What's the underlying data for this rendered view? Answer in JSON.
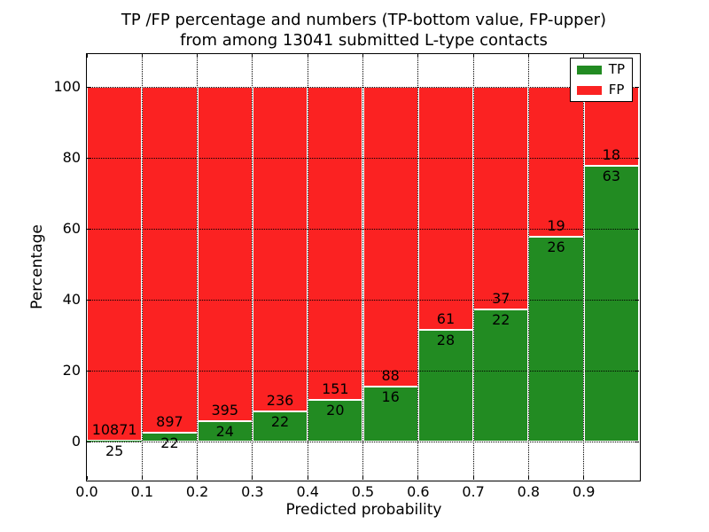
{
  "figure": {
    "title_line1": "TP /FP percentage and numbers (TP-bottom value, FP-upper)",
    "title_line2": "from among 13041 submitted L-type contacts"
  },
  "axes": {
    "xlabel": "Predicted probability",
    "ylabel": "Percentage",
    "x_tick_labels": [
      "0.0",
      "0.1",
      "0.2",
      "0.3",
      "0.4",
      "0.5",
      "0.6",
      "0.7",
      "0.8",
      "0.9"
    ],
    "y_tick_values": [
      0,
      20,
      40,
      60,
      80,
      100
    ],
    "grid": "dotted",
    "tick_direction": "in"
  },
  "legend": {
    "position": "upper-right",
    "items": [
      "TP",
      "FP"
    ]
  },
  "chart_data": {
    "type": "bar",
    "stacked": true,
    "normalized_to_percent": true,
    "title": "TP /FP percentage and numbers (TP-bottom value, FP-upper) from among 13041 submitted L-type contacts",
    "xlabel": "Predicted probability",
    "ylabel": "Percentage",
    "xlim": [
      0.0,
      1.0
    ],
    "ylim": [
      -10.75,
      109.25
    ],
    "total_contacts": 13041,
    "bin_edges": [
      0.0,
      0.1,
      0.2,
      0.3,
      0.4,
      0.5,
      0.6,
      0.7,
      0.8,
      0.9,
      1.0
    ],
    "series": [
      {
        "name": "TP",
        "color": "#228b22",
        "edge_color": "#ffffff",
        "counts": [
          25,
          22,
          24,
          22,
          20,
          16,
          28,
          22,
          26,
          63
        ]
      },
      {
        "name": "FP",
        "color": "#fb2222",
        "edge_color": "#ffffff",
        "counts": [
          10871,
          897,
          395,
          236,
          151,
          88,
          61,
          37,
          19,
          18
        ]
      }
    ],
    "tp_percent_of_bin": [
      0.23,
      2.39,
      5.73,
      8.53,
      11.7,
      15.38,
      31.46,
      37.29,
      57.78,
      77.78
    ],
    "bar_total_percent": 100
  }
}
